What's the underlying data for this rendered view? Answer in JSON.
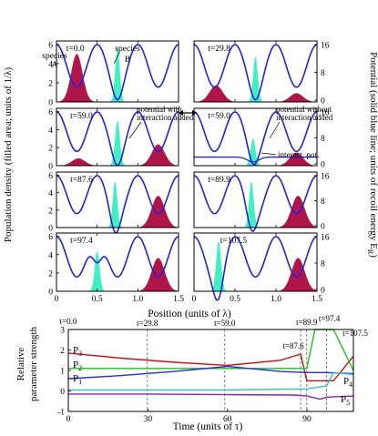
{
  "colors": {
    "potential": "#2222dd",
    "speciesA": "#b0154a",
    "speciesB": "#40f0c0",
    "p1": "#2a2adf",
    "p2": "#20c020",
    "p3": "#d01010",
    "p4": "#30c0c0",
    "p5": "#9020c0"
  },
  "panels_section": {
    "y_axis_left": "Population density (filled area; units of 1/λ)",
    "y_axis_right": "Potential (solid blue line; units of recoil energy E",
    "y_axis_right_sub": "R",
    "y_axis_right_end": ")",
    "x_axis_label": "Position (units of λ)",
    "x_ticks": [
      "0",
      "0.5",
      "1.0",
      "1.5"
    ],
    "left_y_ticks": [
      "0",
      "2",
      "4",
      "6"
    ],
    "right_y_ticks": [
      "0",
      "8",
      "16"
    ],
    "panel_times": [
      "t=0.0",
      "t=29.8",
      "t=59.0",
      "t=59.0",
      "t=87.6",
      "t=89.9",
      "t=97.4",
      "t=107.5"
    ],
    "annotations": {
      "species_a": [
        "species",
        "A"
      ],
      "species_b": [
        "species",
        "B"
      ],
      "with_interaction": [
        "potential with",
        "interaction added"
      ],
      "without_interaction": [
        "potential without",
        "interaction added"
      ],
      "interact_pot": "interact. pot."
    }
  },
  "chart_data": {
    "type": "line",
    "title": "",
    "xlabel": "Time (units of τ)",
    "ylabel": "Relative parameter strength",
    "xlim": [
      0,
      107.5
    ],
    "ylim": [
      -1,
      3
    ],
    "x_ticks": [
      "0",
      "30",
      "60",
      "90"
    ],
    "y_ticks": [
      "-1",
      "0",
      "1",
      "2",
      "3"
    ],
    "time_markers": [
      "t=0.0",
      "t=29.8",
      "t=59.0",
      "t=87.6",
      "t=89.9",
      "t=97.4",
      "t=107.5"
    ],
    "series": [
      {
        "name": "P3",
        "x": [
          0,
          20,
          40,
          60,
          80,
          87.6,
          89.9,
          97.4,
          100,
          107.5
        ],
        "values": [
          1.85,
          1.6,
          1.4,
          1.25,
          1.5,
          1.8,
          0.5,
          0.5,
          0.5,
          1.7
        ]
      },
      {
        "name": "P2",
        "x": [
          0,
          20,
          40,
          60,
          80,
          87.6,
          89.9,
          93,
          97.4,
          100,
          107.5
        ],
        "values": [
          1.1,
          1.1,
          1.1,
          1.1,
          1.1,
          1.1,
          1.1,
          3.0,
          3.0,
          3.0,
          1.0
        ]
      },
      {
        "name": "P1",
        "x": [
          0,
          20,
          40,
          60,
          80,
          89.9,
          97.4,
          107.5
        ],
        "values": [
          0.6,
          0.75,
          0.95,
          1.2,
          0.95,
          0.9,
          0.9,
          0.85
        ]
      },
      {
        "name": "P4",
        "x": [
          0,
          30,
          60,
          89.9,
          97.4,
          100,
          107.5
        ],
        "values": [
          0.05,
          0.05,
          0.05,
          0.1,
          0.25,
          0.9,
          0.8
        ]
      },
      {
        "name": "P5",
        "x": [
          0,
          30,
          60,
          85,
          89.9,
          95,
          97.4,
          107.5
        ],
        "values": [
          -0.15,
          -0.15,
          -0.18,
          -0.2,
          -0.25,
          -0.4,
          -0.3,
          -0.25
        ]
      }
    ]
  }
}
